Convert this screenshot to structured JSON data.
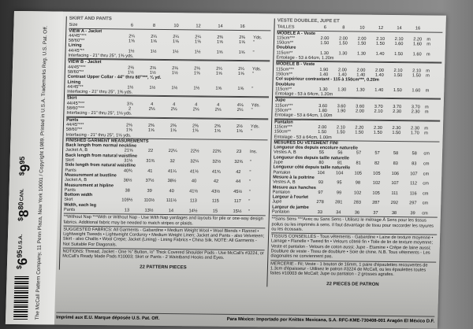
{
  "strip": {
    "prices": [
      {
        "cur": "$",
        "amt": "6",
        "cents": "95",
        "region": "U.S.A."
      },
      {
        "cur": "$",
        "amt": "8",
        "cents": "80",
        "region": "CAN."
      },
      {
        "cur": "$",
        "amt": "9",
        "cents": "95",
        "region": ""
      }
    ],
    "copyright": "The McCall Pattern Company, 11 Penn Plaza, New York 10001 / Copyright 1989. Printed in U.S.A. Trademarks Reg. U.S. Pat. Off."
  },
  "left": {
    "header": "SKIRT AND PANTS",
    "rows": [
      {
        "t": "row",
        "label": "Size",
        "values": [
          "6",
          "8",
          "10",
          "12",
          "14",
          "16"
        ],
        "unit": ""
      },
      {
        "t": "sec",
        "label": "VIEW A - Jacket"
      },
      {
        "t": "row",
        "label": "44/45\"***",
        "values": [
          "2¼",
          "2¼",
          "2¼",
          "2¼",
          "2⅜",
          "2⅜"
        ],
        "unit": "Yds."
      },
      {
        "t": "row",
        "label": "58/60\"**",
        "values": [
          "1⅝",
          "1⅝",
          "1⅝",
          "1⅝",
          "1⅝",
          "1⅝"
        ],
        "unit": "\""
      },
      {
        "t": "head",
        "label": "Lining"
      },
      {
        "t": "row",
        "label": "44/45\"**",
        "values": [
          "1½",
          "1½",
          "1½",
          "1½",
          "1⅝",
          "1⅝"
        ],
        "unit": "\""
      },
      {
        "t": "note",
        "label": "Interfacing - 21\" thru 25\", 1⅜ yds."
      },
      {
        "t": "sec",
        "label": "VIEW B - Jacket"
      },
      {
        "t": "row",
        "label": "44/45\"***",
        "values": [
          "2⅛",
          "2⅛",
          "2⅛",
          "2⅛",
          "2¼",
          "2¼"
        ],
        "unit": "Yds."
      },
      {
        "t": "row",
        "label": "58/60\"**",
        "values": [
          "1½",
          "1½",
          "1½",
          "1⅝",
          "1⅝",
          "1⅝"
        ],
        "unit": "\""
      },
      {
        "t": "head",
        "label": "Contrast Upper Collar - 44\" thru 60\"***, ¼ yd."
      },
      {
        "t": "head",
        "label": "Lining"
      },
      {
        "t": "row",
        "label": "44/45\"**",
        "values": [
          "1½",
          "1½",
          "1½",
          "1½",
          "1⅝",
          "1⅝"
        ],
        "unit": "\""
      },
      {
        "t": "note",
        "label": "Interfacing - 21\" thru 25\", 1⅜ yds."
      },
      {
        "t": "sec",
        "label": "Skirt"
      },
      {
        "t": "row",
        "label": "44/45\"***",
        "values": [
          "3⅞",
          "4",
          "4",
          "4",
          "4",
          "4⅛"
        ],
        "unit": "Yds."
      },
      {
        "t": "row",
        "label": "58/60\"***",
        "values": [
          "2",
          "2⅛",
          "2⅛",
          "2⅛",
          "2⅛",
          "2¼"
        ],
        "unit": "\""
      },
      {
        "t": "note",
        "label": "Interfacing - 21\" thru 25\", 1⅛ yds."
      },
      {
        "t": "sec",
        "label": "Pants"
      },
      {
        "t": "row",
        "label": "44/45\"***",
        "values": [
          "2⅛",
          "2⅜",
          "2⅜",
          "2⅜",
          "2⅜",
          "2½"
        ],
        "unit": "Yds."
      },
      {
        "t": "row",
        "label": "58/60\"**",
        "values": [
          "1⅝",
          "1⅝",
          "1⅝",
          "1⅝",
          "1⅝",
          "1⅝"
        ],
        "unit": "\""
      },
      {
        "t": "note",
        "label": "Interfacing - 21\" thru 25\", 1⅛ yds."
      },
      {
        "t": "head",
        "label": "FINISHED GARMENT MEASUREMENTS"
      },
      {
        "t": "head",
        "label": "Back length from normal neckline"
      },
      {
        "t": "row",
        "label": "Jacket A, B",
        "values": [
          "21⅝",
          "22",
          "22¼",
          "22½",
          "22¾",
          "23"
        ],
        "unit": "Ins."
      },
      {
        "t": "head",
        "label": "Back length from natural waistline"
      },
      {
        "t": "row",
        "label": "Skirt",
        "values": [
          "31½",
          "31¾",
          "32",
          "32¼",
          "32½",
          "32¾"
        ],
        "unit": "\""
      },
      {
        "t": "head",
        "label": "Side length from natural waistline"
      },
      {
        "t": "row",
        "label": "Pants",
        "values": [
          "40¾",
          "41",
          "41¼",
          "41½",
          "41¾",
          "42"
        ],
        "unit": "\""
      },
      {
        "t": "head",
        "label": "Measurement at bustline"
      },
      {
        "t": "row",
        "label": "Jacket A, B",
        "values": [
          "36½",
          "37½",
          "38½",
          "40",
          "42",
          "44"
        ],
        "unit": "\""
      },
      {
        "t": "head",
        "label": "Measurement at hipline"
      },
      {
        "t": "row",
        "label": "Pants",
        "values": [
          "38",
          "39",
          "40",
          "41½",
          "43½",
          "45½"
        ],
        "unit": "\""
      },
      {
        "t": "head",
        "label": "Bottom width"
      },
      {
        "t": "row",
        "label": "Skirt",
        "values": [
          "109½",
          "110½",
          "111½",
          "113",
          "115",
          "117"
        ],
        "unit": "\""
      },
      {
        "t": "head",
        "label": "Width, each leg"
      },
      {
        "t": "row",
        "label": "Pants",
        "values": [
          "13",
          "13½",
          "14",
          "14½",
          "15",
          "15½"
        ],
        "unit": "\""
      }
    ],
    "nap_note": "**Without Nap  ***With or Without Nap - Use With Nap yardages and layouts for pile or one-way design fabrics. Additional fabric may be needed to match stripes or plaids.",
    "fabrics": "SUGGESTED FABRICS: All Garments - Gabardine • Medium Weight Wool • Wool Blends • Flannel • Lightweight Tweeds • Lightweight Corduroy • Medium Weight Linen; Jacket and Pants - also Velveteen; Skirt - also Challis • Wool Crepe; Jacket (Lining) - Lining Fabrics • China Silk. NOTE: All Garments - Not Suitable For Diagonals.",
    "notions": "NOTIONS: Thread, Jacket - One ⅝\" Button, ½\" Thick Covered Shoulder Pads - Use McCall's #3224, or McCall's Ready Made Pads #10003; Skirt or Pants - 2 Waistband Hooks and Eyes.",
    "pieces": "22 PATTERN PIECES"
  },
  "right": {
    "header": "VESTE DOUBLEE, JUPE ET",
    "rows": [
      {
        "t": "row",
        "label": "TAILLES",
        "values": [
          "6",
          "8",
          "10",
          "12",
          "14",
          "16"
        ],
        "unit": ""
      },
      {
        "t": "sec",
        "label": "MODELE A - Veste"
      },
      {
        "t": "row",
        "label": "115cm***",
        "values": [
          "2.00",
          "2.00",
          "2.00",
          "2.10",
          "2.10",
          "2.20"
        ],
        "unit": "m"
      },
      {
        "t": "row",
        "label": "150cm**",
        "values": [
          "1.50",
          "1.50",
          "1.50",
          "1.50",
          "1.60",
          "1.60"
        ],
        "unit": "m"
      },
      {
        "t": "head",
        "label": "Doublure"
      },
      {
        "t": "row",
        "label": "115cm**",
        "values": [
          "1.30",
          "1.30",
          "1.30",
          "1.40",
          "1.50",
          "1.60"
        ],
        "unit": "m"
      },
      {
        "t": "note",
        "label": "Entoilage - 53 à 64cm, 1.20m"
      },
      {
        "t": "sec",
        "label": "MODELE B - Veste"
      },
      {
        "t": "row",
        "label": "115cm***",
        "values": [
          "1.90",
          "2.00",
          "2.00",
          "2.00",
          "2.10",
          "2.10"
        ],
        "unit": "m"
      },
      {
        "t": "row",
        "label": "150cm**",
        "values": [
          "1.40",
          "1.40",
          "1.40",
          "1.40",
          "1.50",
          "1.50"
        ],
        "unit": "m"
      },
      {
        "t": "head",
        "label": "Col supérieur contrastant - 115 à 150cm***, 0.20m"
      },
      {
        "t": "head",
        "label": "Doublure"
      },
      {
        "t": "row",
        "label": "115cm**",
        "values": [
          "1.30",
          "1.30",
          "1.30",
          "1.40",
          "1.50",
          "1.60"
        ],
        "unit": "m"
      },
      {
        "t": "note",
        "label": "Entoilage - 53 à 64cm, 1.20m"
      },
      {
        "t": "sec",
        "label": "Jupe"
      },
      {
        "t": "row",
        "label": "115cm***",
        "values": [
          "3.60",
          "3.60",
          "3.60",
          "3.70",
          "3.70",
          "3.70"
        ],
        "unit": "m"
      },
      {
        "t": "row",
        "label": "150cm**",
        "values": [
          "1.80",
          "1.90",
          "2.00",
          "2.10",
          "2.30",
          "2.30"
        ],
        "unit": "m"
      },
      {
        "t": "note",
        "label": "Entoilage - 53 à 64cm, 1.00m"
      },
      {
        "t": "sec",
        "label": "Pantalon"
      },
      {
        "t": "row",
        "label": "115cm***",
        "values": [
          "2.00",
          "2.10",
          "2.20",
          "2.30",
          "2.30",
          "2.30"
        ],
        "unit": "m"
      },
      {
        "t": "row",
        "label": "150cm**",
        "values": [
          "1.50",
          "1.50",
          "1.50",
          "1.50",
          "1.50",
          "1.70"
        ],
        "unit": "m"
      },
      {
        "t": "note",
        "label": "Entoilage - 53 à 64cm, 1.00m"
      },
      {
        "t": "head",
        "label": "MESURES DU VETEMENT FINI"
      },
      {
        "t": "head",
        "label": "Longueur dos depuis encolure naturelle"
      },
      {
        "t": "row",
        "label": "Vestes A, B",
        "values": [
          "55",
          "56",
          "57",
          "57",
          "58",
          "58"
        ],
        "unit": "cm"
      },
      {
        "t": "head",
        "label": "Longueur dos depuis taille naturelle"
      },
      {
        "t": "row",
        "label": "Jupe",
        "values": [
          "80",
          "81",
          "81",
          "82",
          "83",
          "83"
        ],
        "unit": "cm"
      },
      {
        "t": "head",
        "label": "Longueur côté depuis taille naturelle"
      },
      {
        "t": "row",
        "label": "Pantalon",
        "values": [
          "104",
          "104",
          "105",
          "105",
          "106",
          "107"
        ],
        "unit": "cm"
      },
      {
        "t": "head",
        "label": "Mesure à la poitrine"
      },
      {
        "t": "row",
        "label": "Vestes A, B",
        "values": [
          "93",
          "95",
          "98",
          "102",
          "107",
          "112"
        ],
        "unit": "cm"
      },
      {
        "t": "head",
        "label": "Mesure aux hanches"
      },
      {
        "t": "row",
        "label": "Pantalon",
        "values": [
          "97",
          "99",
          "102",
          "105",
          "111",
          "116"
        ],
        "unit": "cm"
      },
      {
        "t": "head",
        "label": "Largeur à l'ourlet"
      },
      {
        "t": "row",
        "label": "Jupe",
        "values": [
          "278",
          "281",
          "283",
          "287",
          "292",
          "297"
        ],
        "unit": "cm"
      },
      {
        "t": "head",
        "label": "Largeur de jambe"
      },
      {
        "t": "row",
        "label": "Pantalon",
        "values": [
          "33",
          "34",
          "36",
          "37",
          "38",
          "39"
        ],
        "unit": "cm"
      }
    ],
    "nap_note": "**Sans Sens  ***Avec ou Sans Sens - Utilisez le métrage À Sens pour les tissus poilus ou les imprimés à sens. Il faut davantage de tissu pour raccorder les rayures ou les écossais.",
    "fabrics": "TISSUS CONSEILLES - Tous vêtements - Gabardine • Laine de texture moyenne • Lainage • Flanelle • Tweed fin • Velours côtelé fin • Toile de lin de texture moyenne; Veste et pantalon - Velours de coton aussi; Jupe - Etamine • Crêpe de laine aussi; Doublure de veste - Tissu de doublure • Soie de chine. N.B. Tous vêtements - Les diagonales ne conviennent pas.",
    "notions": "MERCERIE - Fil; Veste - 1 bouton de 16mm, 1 paire d'épaulettes recouvertes de 1.3cm d'épaisseur - Utilisez le patron #3224 de McCall, ou les épaulettes toutes faites #10003 de McCall; Jupe ou pantalon - 2 grosses agrafes.",
    "pieces": "22 PIECES DE PATRON"
  },
  "footer": {
    "left": "Imprimé aux E.U. Marque déposée U.S. Pat. Off.",
    "right": "Para México: Importado por Knittex Mexicana, S.A.   RFC-KME-730408-001   Aragón El   México D.F."
  }
}
